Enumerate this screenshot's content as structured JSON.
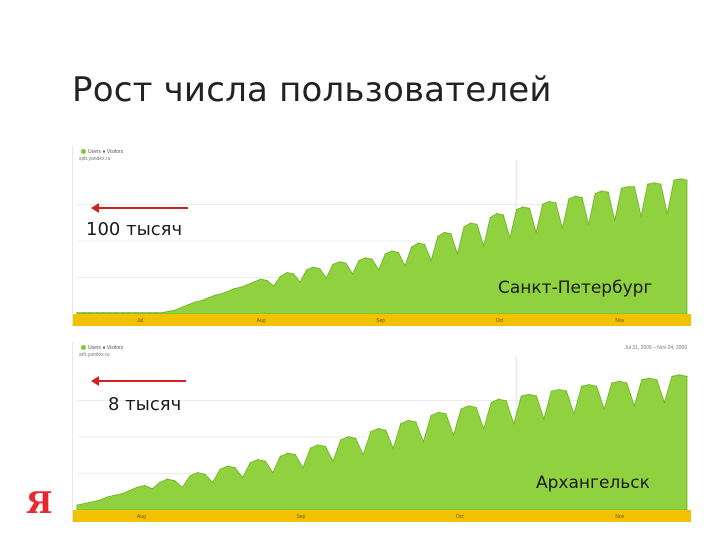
{
  "slide": {
    "title": "Рост числа пользователей",
    "logo_text": "Я"
  },
  "colors": {
    "area_fill": "#8fd13f",
    "area_line": "#6fb225",
    "axis_band": "#f2c200",
    "arrow": "#d31f1f",
    "logo": "#e8282f"
  },
  "chart_data": [
    {
      "type": "area",
      "city": "Санкт-Петербург",
      "callout": "100 тысяч",
      "legend": "Users ● Visitors",
      "site": "spb.yandex.ru",
      "date_range": "",
      "x_ticks": [
        "Jul",
        "Aug",
        "Sep",
        "Oct",
        "Nov"
      ],
      "series": [
        {
          "values": [
            1,
            1,
            1,
            1,
            1,
            1,
            1,
            1,
            1,
            1,
            1,
            1,
            1,
            1,
            2,
            3,
            5,
            7,
            9,
            10,
            12,
            14,
            15,
            17,
            19,
            20,
            22,
            24,
            26,
            25,
            21,
            28,
            31,
            30,
            24,
            33,
            35,
            34,
            27,
            37,
            39,
            38,
            30,
            40,
            42,
            41,
            33,
            45,
            47,
            46,
            36,
            50,
            53,
            52,
            40,
            58,
            61,
            60,
            45,
            65,
            68,
            67,
            51,
            72,
            75,
            74,
            57,
            78,
            80,
            79,
            61,
            82,
            84,
            83,
            64,
            86,
            88,
            87,
            67,
            90,
            92,
            91,
            70,
            94,
            95,
            95,
            73,
            97,
            98,
            97,
            75,
            100,
            101,
            100
          ]
        }
      ],
      "grid": true
    },
    {
      "type": "area",
      "city": "Архангельск",
      "callout": "8 тысяч",
      "legend": "Users ● Visitors",
      "site": "arh.yandex.ru",
      "date_range": "Jul 31, 2009 – Nov 24, 2009",
      "x_ticks": [
        "Aug",
        "Sep",
        "Oct",
        "Nov"
      ],
      "series": [
        {
          "values": [
            0.3,
            0.4,
            0.5,
            0.6,
            0.8,
            0.9,
            1.0,
            1.2,
            1.4,
            1.5,
            1.3,
            1.7,
            1.9,
            1.8,
            1.4,
            2.1,
            2.3,
            2.2,
            1.7,
            2.5,
            2.7,
            2.6,
            2.0,
            2.9,
            3.1,
            3.0,
            2.3,
            3.3,
            3.5,
            3.4,
            2.6,
            3.8,
            4.0,
            3.9,
            3.0,
            4.3,
            4.5,
            4.4,
            3.4,
            4.8,
            5.0,
            4.9,
            3.8,
            5.3,
            5.5,
            5.4,
            4.2,
            5.8,
            6.0,
            5.9,
            4.6,
            6.2,
            6.4,
            6.3,
            5.0,
            6.6,
            6.8,
            6.7,
            5.3,
            7.0,
            7.1,
            7.0,
            5.6,
            7.3,
            7.4,
            7.3,
            5.9,
            7.6,
            7.7,
            7.6,
            6.2,
            7.8,
            7.9,
            7.8,
            6.4,
            8.0,
            8.1,
            8.0,
            6.6,
            8.2,
            8.3,
            8.2
          ]
        }
      ],
      "grid": true
    }
  ]
}
